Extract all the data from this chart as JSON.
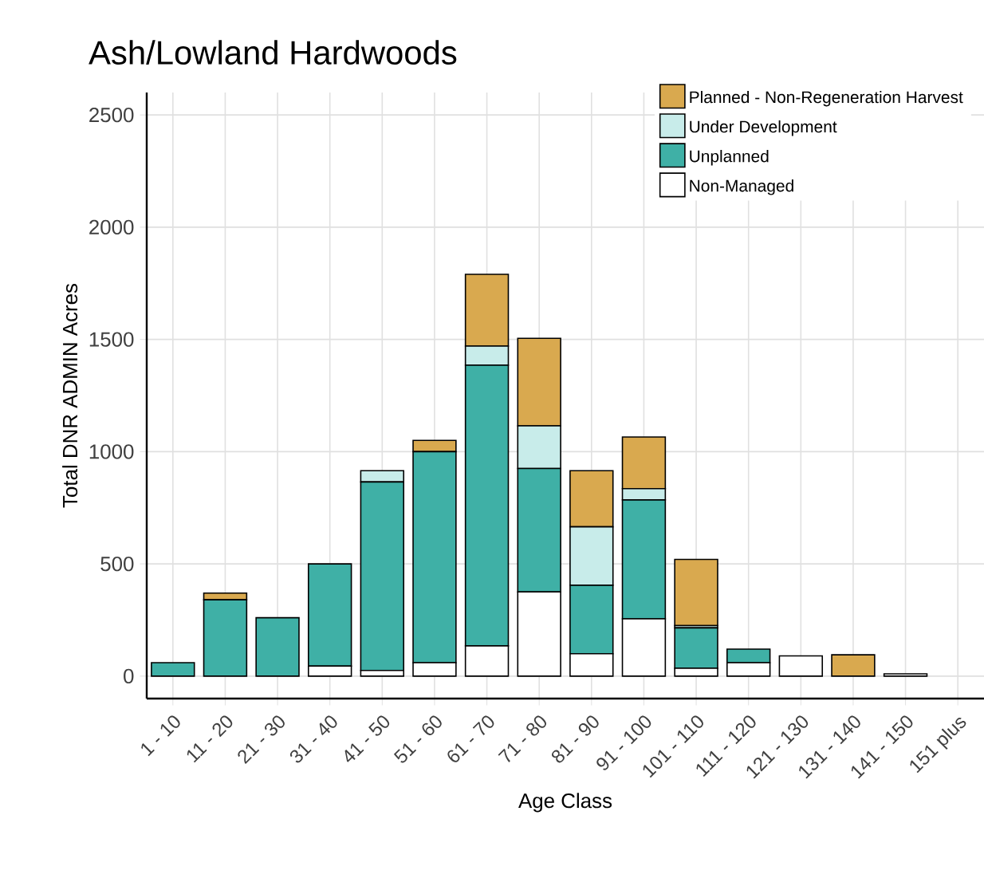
{
  "chart_data": {
    "type": "bar",
    "stacked": true,
    "title": "Ash/Lowland Hardwoods",
    "xlabel": "Age Class",
    "ylabel": "Total DNR ADMIN Acres",
    "categories": [
      "1 - 10",
      "11 - 20",
      "21 - 30",
      "31 - 40",
      "41 - 50",
      "51 - 60",
      "61 - 70",
      "71 - 80",
      "81 - 90",
      "91 - 100",
      "101 - 110",
      "111 - 120",
      "121 - 130",
      "131 - 140",
      "141 - 150",
      "151 plus"
    ],
    "series": [
      {
        "name": "Non-Managed",
        "color": "#ffffff",
        "values": [
          0,
          0,
          0,
          45,
          25,
          60,
          135,
          375,
          100,
          255,
          35,
          60,
          90,
          0,
          10,
          0
        ]
      },
      {
        "name": "Unplanned",
        "color": "#3fb0a6",
        "values": [
          60,
          340,
          260,
          455,
          840,
          940,
          1250,
          550,
          305,
          530,
          180,
          60,
          0,
          0,
          0,
          0
        ]
      },
      {
        "name": "Under Development",
        "color": "#c8ecea",
        "values": [
          0,
          0,
          0,
          0,
          50,
          0,
          85,
          190,
          260,
          50,
          10,
          0,
          0,
          0,
          0,
          0
        ]
      },
      {
        "name": "Planned - Non-Regeneration Harvest",
        "color": "#d9a94f",
        "values": [
          0,
          30,
          0,
          0,
          0,
          50,
          320,
          390,
          250,
          230,
          295,
          0,
          0,
          95,
          0,
          0
        ]
      }
    ],
    "ylim": [
      -100,
      2600
    ],
    "yticks": [
      0,
      500,
      1000,
      1500,
      2000,
      2500
    ],
    "grid": true,
    "legend": "top right"
  }
}
